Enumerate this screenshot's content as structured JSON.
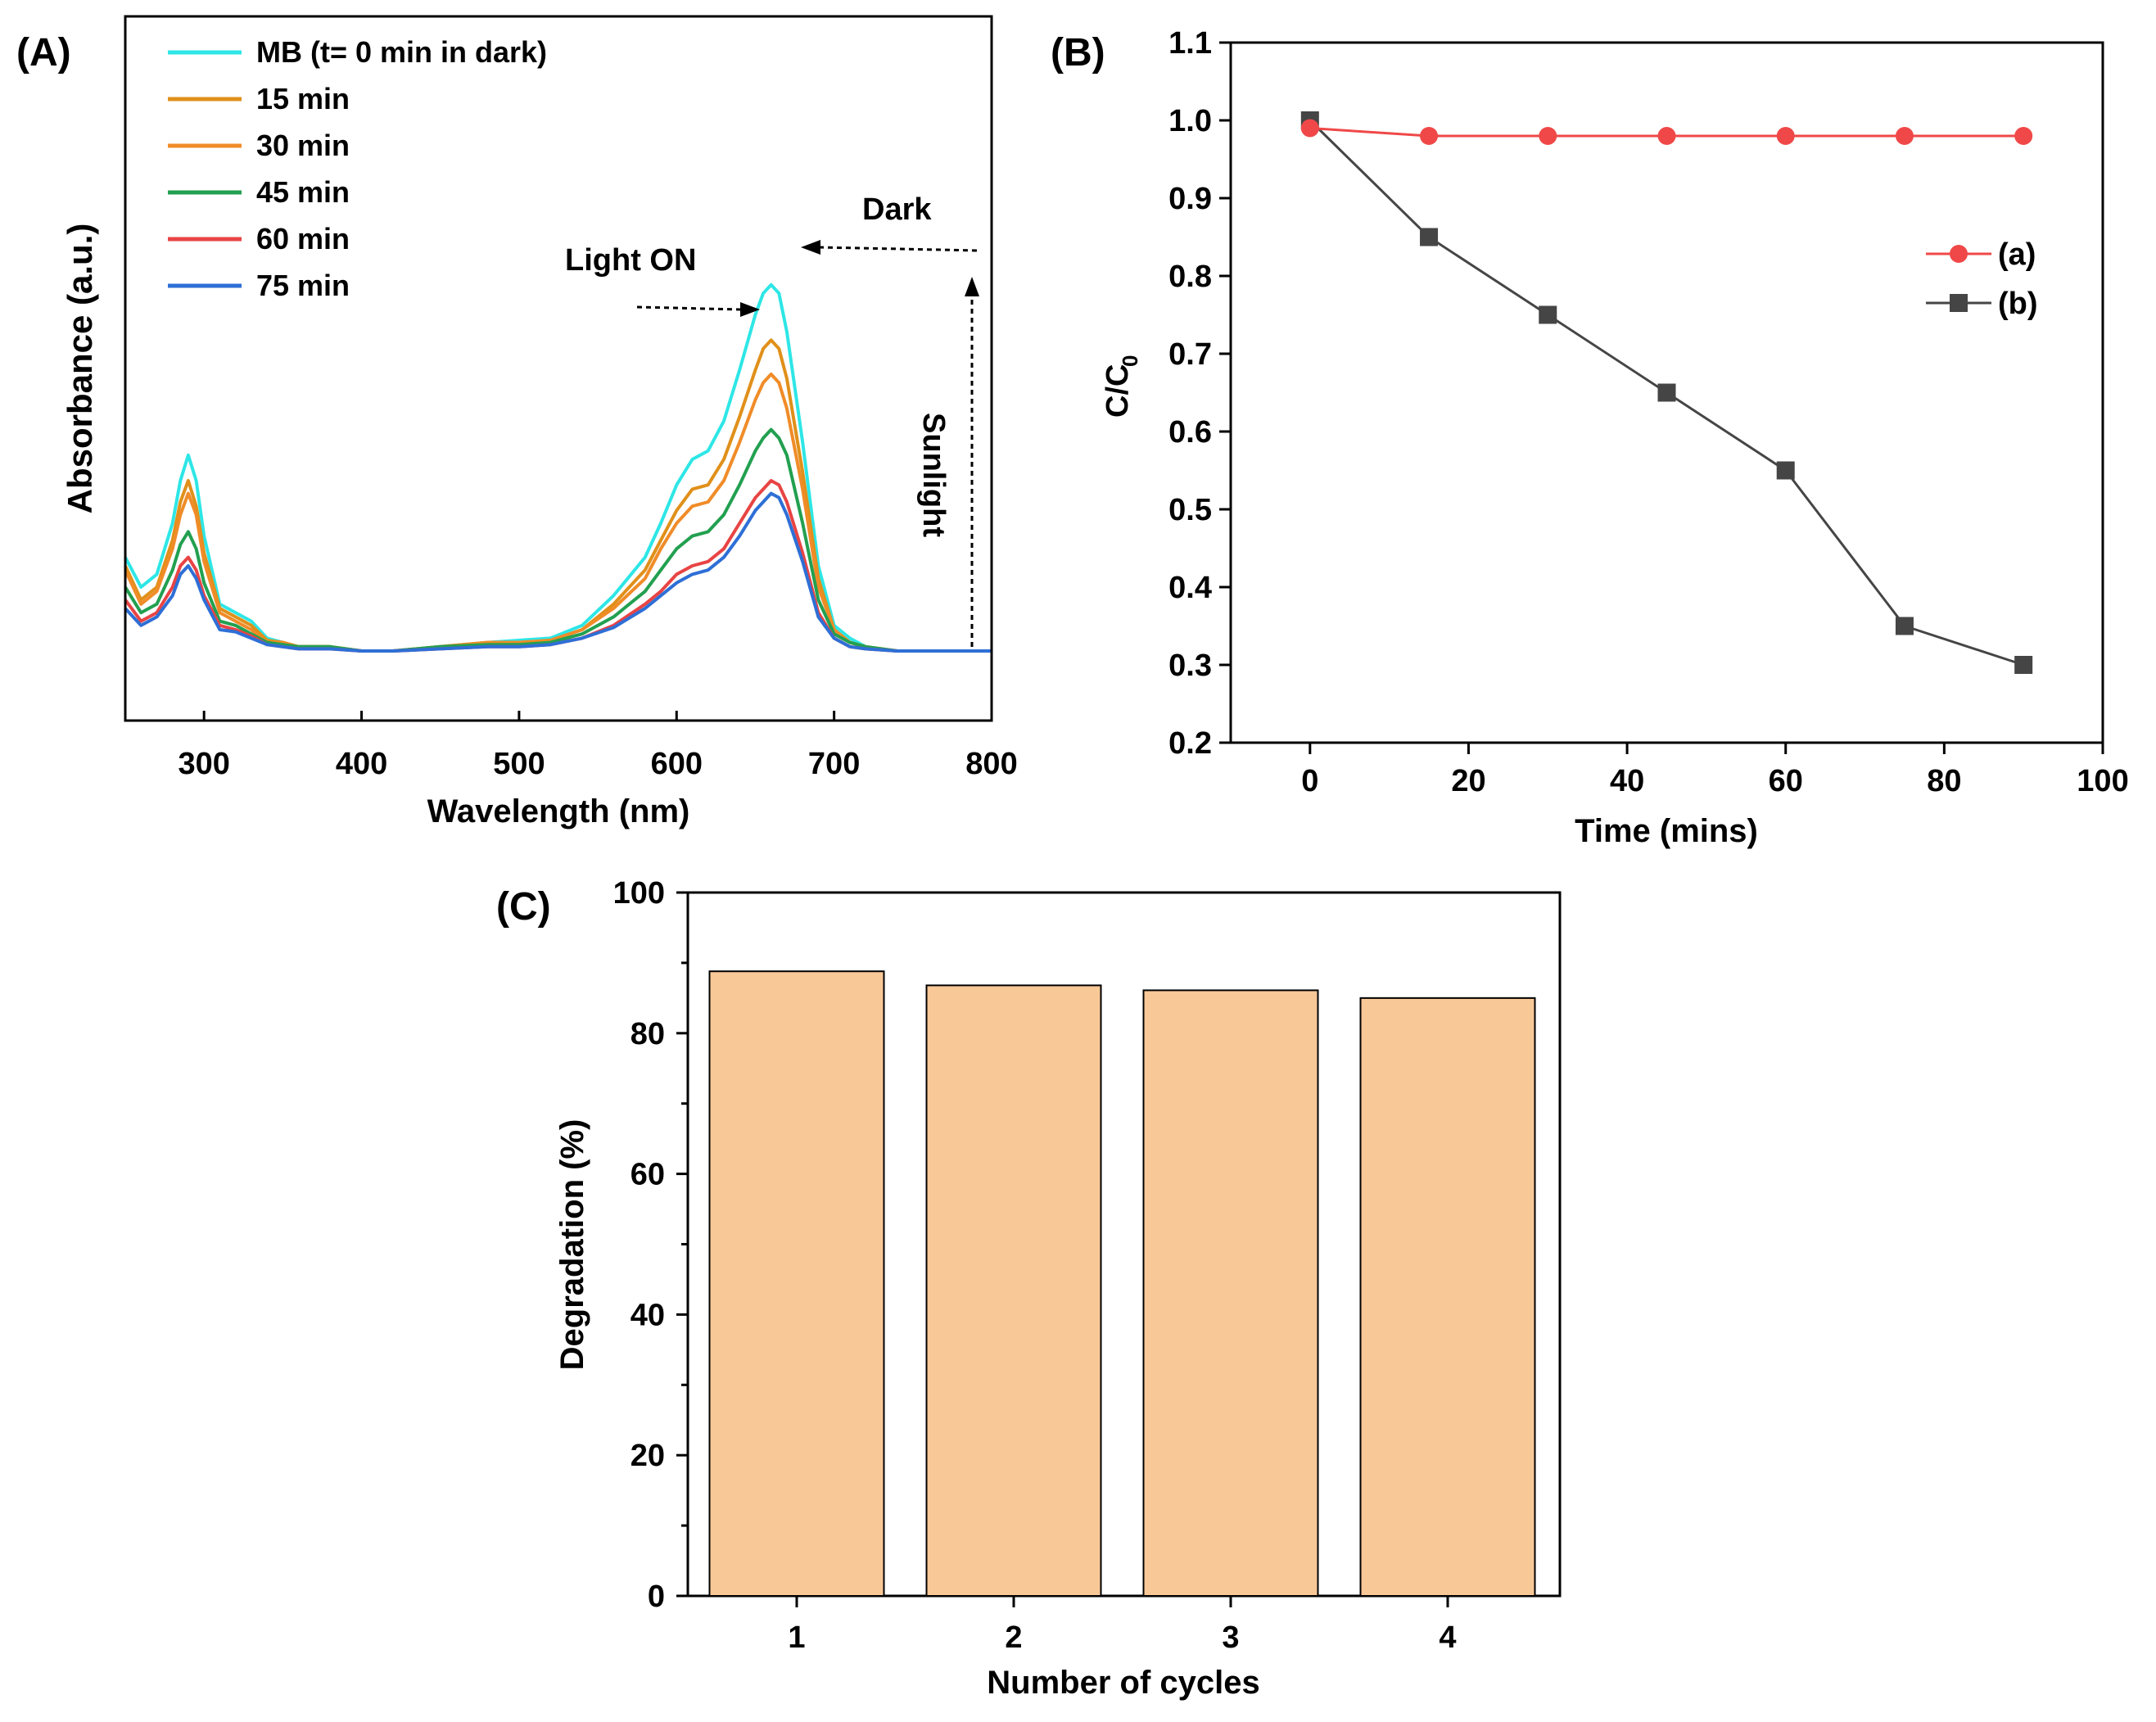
{
  "chart_data": [
    {
      "panel": "(A)",
      "type": "line",
      "xlabel": "Wavelength (nm)",
      "ylabel": "Absorbance (a.u.)",
      "xlim": [
        250,
        800
      ],
      "xticks": [
        "300",
        "400",
        "500",
        "600",
        "700",
        "800"
      ],
      "ylim": [
        0,
        1.15
      ],
      "x": [
        250,
        260,
        270,
        280,
        285,
        290,
        295,
        300,
        310,
        320,
        330,
        340,
        350,
        360,
        380,
        400,
        420,
        450,
        480,
        500,
        520,
        540,
        560,
        580,
        590,
        600,
        610,
        620,
        630,
        640,
        650,
        655,
        660,
        665,
        670,
        680,
        690,
        700,
        710,
        720,
        740,
        760,
        800
      ],
      "series": [
        {
          "name": "MB (t= 0 min in dark)",
          "color": "#2ee6e6",
          "values": [
            0.22,
            0.15,
            0.18,
            0.3,
            0.4,
            0.46,
            0.4,
            0.27,
            0.11,
            0.09,
            0.07,
            0.03,
            0.02,
            0.01,
            0.01,
            0.0,
            0.0,
            0.01,
            0.02,
            0.025,
            0.03,
            0.06,
            0.13,
            0.22,
            0.3,
            0.39,
            0.45,
            0.47,
            0.54,
            0.66,
            0.79,
            0.84,
            0.86,
            0.84,
            0.75,
            0.49,
            0.2,
            0.06,
            0.03,
            0.01,
            0.0,
            0.0,
            0.0
          ]
        },
        {
          "name": "15 min",
          "color": "#e0901a",
          "values": [
            0.2,
            0.12,
            0.15,
            0.26,
            0.35,
            0.4,
            0.34,
            0.23,
            0.1,
            0.08,
            0.06,
            0.025,
            0.02,
            0.01,
            0.01,
            0.0,
            0.0,
            0.01,
            0.02,
            0.02,
            0.025,
            0.05,
            0.11,
            0.19,
            0.26,
            0.33,
            0.38,
            0.39,
            0.45,
            0.55,
            0.66,
            0.71,
            0.73,
            0.71,
            0.64,
            0.42,
            0.17,
            0.05,
            0.02,
            0.01,
            0.0,
            0.0,
            0.0
          ]
        },
        {
          "name": "30 min",
          "color": "#f08c28",
          "values": [
            0.19,
            0.11,
            0.14,
            0.24,
            0.32,
            0.37,
            0.32,
            0.21,
            0.09,
            0.07,
            0.05,
            0.02,
            0.02,
            0.01,
            0.01,
            0.0,
            0.0,
            0.01,
            0.02,
            0.02,
            0.025,
            0.05,
            0.1,
            0.17,
            0.24,
            0.3,
            0.34,
            0.35,
            0.4,
            0.49,
            0.59,
            0.63,
            0.65,
            0.63,
            0.57,
            0.38,
            0.15,
            0.05,
            0.02,
            0.01,
            0.0,
            0.0,
            0.0
          ]
        },
        {
          "name": "45 min",
          "color": "#22a050",
          "values": [
            0.15,
            0.09,
            0.11,
            0.19,
            0.25,
            0.28,
            0.24,
            0.16,
            0.07,
            0.06,
            0.04,
            0.02,
            0.015,
            0.01,
            0.01,
            0.0,
            0.0,
            0.01,
            0.015,
            0.015,
            0.02,
            0.04,
            0.08,
            0.14,
            0.19,
            0.24,
            0.27,
            0.28,
            0.32,
            0.39,
            0.47,
            0.5,
            0.52,
            0.5,
            0.46,
            0.3,
            0.12,
            0.04,
            0.02,
            0.01,
            0.0,
            0.0,
            0.0
          ]
        },
        {
          "name": "60 min",
          "color": "#e84444",
          "values": [
            0.12,
            0.07,
            0.09,
            0.15,
            0.2,
            0.22,
            0.19,
            0.13,
            0.06,
            0.05,
            0.035,
            0.015,
            0.01,
            0.005,
            0.005,
            0.0,
            0.0,
            0.005,
            0.01,
            0.01,
            0.015,
            0.03,
            0.06,
            0.11,
            0.14,
            0.18,
            0.2,
            0.21,
            0.24,
            0.3,
            0.36,
            0.38,
            0.4,
            0.39,
            0.35,
            0.23,
            0.09,
            0.03,
            0.01,
            0.005,
            0.0,
            0.0,
            0.0
          ]
        },
        {
          "name": "75 min",
          "color": "#2e6fd6",
          "values": [
            0.1,
            0.06,
            0.08,
            0.13,
            0.18,
            0.2,
            0.17,
            0.12,
            0.05,
            0.045,
            0.03,
            0.015,
            0.01,
            0.005,
            0.005,
            0.0,
            0.0,
            0.005,
            0.01,
            0.01,
            0.015,
            0.03,
            0.055,
            0.1,
            0.13,
            0.16,
            0.18,
            0.19,
            0.22,
            0.27,
            0.33,
            0.35,
            0.37,
            0.36,
            0.32,
            0.21,
            0.08,
            0.03,
            0.01,
            0.005,
            0.0,
            0.0,
            0.0
          ]
        }
      ],
      "annotations": {
        "light_on": "Light ON",
        "dark": "Dark",
        "sunlight": "Sunlight"
      }
    },
    {
      "panel": "(B)",
      "type": "line",
      "xlabel": "Time (mins)",
      "ylabel_main": "C/C",
      "ylabel_sub": "0",
      "xlim": [
        -10,
        100
      ],
      "ylim": [
        0.2,
        1.1
      ],
      "xticks": [
        "0",
        "20",
        "40",
        "60",
        "80",
        "100"
      ],
      "yticks": [
        "0.2",
        "0.3",
        "0.4",
        "0.5",
        "0.6",
        "0.7",
        "0.8",
        "0.9",
        "1.0",
        "1.1"
      ],
      "x": [
        0,
        15,
        30,
        45,
        60,
        75,
        90
      ],
      "series": [
        {
          "name": "(a)",
          "color": "#f04848",
          "marker": "circle",
          "values": [
            0.99,
            0.98,
            0.98,
            0.98,
            0.98,
            0.98,
            0.98
          ]
        },
        {
          "name": "(b)",
          "color": "#454545",
          "marker": "square",
          "values": [
            1.0,
            0.85,
            0.75,
            0.65,
            0.55,
            0.35,
            0.3
          ]
        }
      ]
    },
    {
      "panel": "(C)",
      "type": "bar",
      "xlabel": "Number of cycles",
      "ylabel": "Degradation (%)",
      "ylim": [
        0,
        100
      ],
      "yticks": [
        "0",
        "20",
        "40",
        "60",
        "80",
        "100"
      ],
      "categories": [
        "1",
        "2",
        "3",
        "4"
      ],
      "values": [
        88.8,
        86.8,
        86.1,
        85.0
      ],
      "bar_color": "#f9c897"
    }
  ]
}
